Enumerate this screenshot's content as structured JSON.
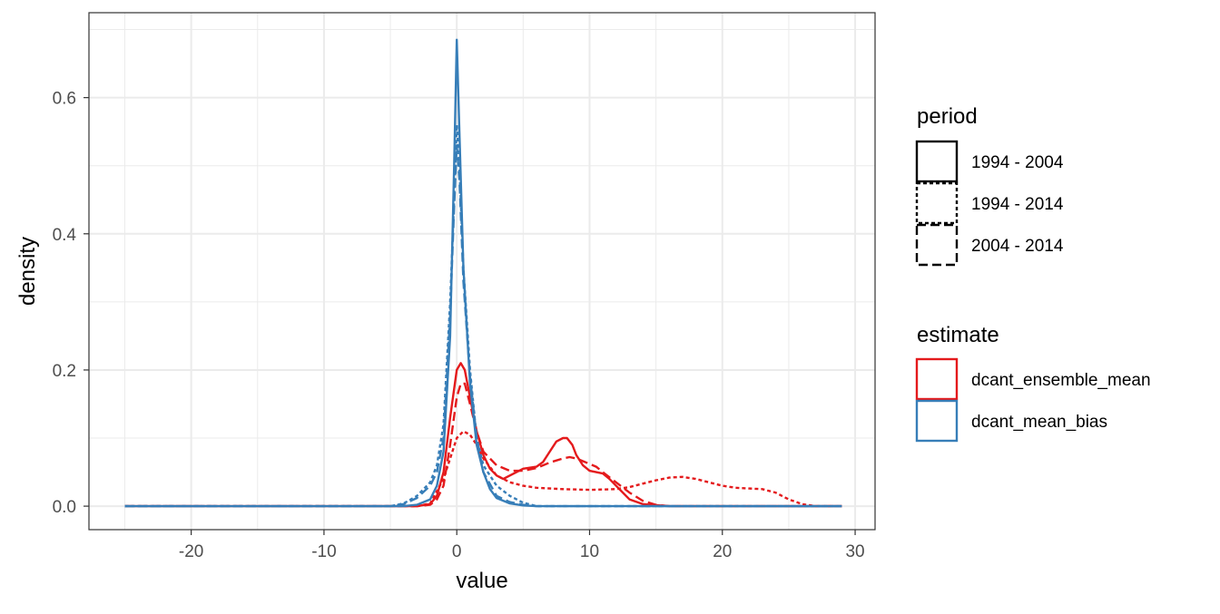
{
  "chart_data": {
    "type": "line",
    "xlabel": "value",
    "ylabel": "density",
    "xlim": [
      -27.7,
      31.5
    ],
    "ylim": [
      -0.0345,
      0.7247
    ],
    "xticks": [
      -20,
      -10,
      0,
      10,
      20,
      30
    ],
    "yticks": [
      0.0,
      0.2,
      0.4,
      0.6
    ],
    "xtick_labels": [
      "-20",
      "-10",
      "0",
      "10",
      "20",
      "30"
    ],
    "ytick_labels": [
      "0.0",
      "0.2",
      "0.4",
      "0.6"
    ],
    "grid": true,
    "legend_position": "right",
    "colors": {
      "dcant_ensemble_mean": "#e41a1c",
      "dcant_mean_bias": "#377eb8"
    },
    "legends": [
      {
        "title": "period",
        "kind": "linetype",
        "entries": [
          {
            "label": "1994 - 2004",
            "linetype": "solid"
          },
          {
            "label": "1994 - 2014",
            "linetype": "dotted"
          },
          {
            "label": "2004 - 2014",
            "linetype": "dashed"
          }
        ]
      },
      {
        "title": "estimate",
        "kind": "color",
        "entries": [
          {
            "label": "dcant_ensemble_mean",
            "color": "#e41a1c"
          },
          {
            "label": "dcant_mean_bias",
            "color": "#377eb8"
          }
        ]
      }
    ],
    "series": [
      {
        "estimate": "dcant_ensemble_mean",
        "period": "1994 - 2004",
        "x": [
          -25,
          -3,
          -2,
          -1.5,
          -1,
          -0.5,
          0,
          0.3,
          0.6,
          1,
          1.5,
          2,
          2.5,
          3,
          3.5,
          4,
          5,
          6,
          6.5,
          7,
          7.5,
          8,
          8.3,
          8.7,
          9,
          9.5,
          10,
          10.5,
          11,
          11.5,
          12,
          12.5,
          13,
          14,
          16,
          20,
          25,
          29
        ],
        "y": [
          0,
          0,
          0.003,
          0.015,
          0.05,
          0.13,
          0.2,
          0.21,
          0.2,
          0.16,
          0.11,
          0.075,
          0.055,
          0.045,
          0.04,
          0.045,
          0.055,
          0.058,
          0.065,
          0.08,
          0.095,
          0.1,
          0.1,
          0.09,
          0.075,
          0.06,
          0.052,
          0.05,
          0.048,
          0.04,
          0.03,
          0.02,
          0.01,
          0.003,
          0,
          0,
          0,
          0
        ]
      },
      {
        "estimate": "dcant_ensemble_mean",
        "period": "1994 - 2014",
        "x": [
          -25,
          -3,
          -2,
          -1,
          -0.5,
          0,
          0.5,
          1,
          1.5,
          2,
          3,
          4,
          5,
          6,
          8,
          10,
          12,
          13,
          14,
          15,
          16,
          17,
          18,
          19,
          20,
          21,
          22,
          23,
          24,
          25,
          26,
          27,
          29
        ],
        "y": [
          0,
          0,
          0.004,
          0.04,
          0.07,
          0.1,
          0.11,
          0.105,
          0.09,
          0.07,
          0.045,
          0.035,
          0.03,
          0.027,
          0.025,
          0.024,
          0.025,
          0.028,
          0.033,
          0.038,
          0.042,
          0.043,
          0.04,
          0.035,
          0.03,
          0.027,
          0.026,
          0.025,
          0.02,
          0.01,
          0.003,
          0,
          0
        ]
      },
      {
        "estimate": "dcant_ensemble_mean",
        "period": "2004 - 2014",
        "x": [
          -25,
          -3,
          -2,
          -1.5,
          -1,
          -0.5,
          0,
          0.3,
          0.6,
          1,
          1.5,
          2,
          3,
          4,
          5,
          6,
          7,
          8,
          8.5,
          9,
          9.5,
          10,
          10.5,
          11,
          12,
          13,
          14,
          15,
          16,
          20,
          25,
          29
        ],
        "y": [
          0,
          0,
          0.002,
          0.01,
          0.03,
          0.09,
          0.16,
          0.18,
          0.18,
          0.15,
          0.11,
          0.08,
          0.06,
          0.052,
          0.052,
          0.056,
          0.064,
          0.07,
          0.072,
          0.07,
          0.066,
          0.062,
          0.058,
          0.05,
          0.035,
          0.02,
          0.008,
          0.002,
          0,
          0,
          0,
          0
        ]
      },
      {
        "estimate": "dcant_mean_bias",
        "period": "1994 - 2004",
        "x": [
          -25,
          -4,
          -3,
          -2,
          -1.5,
          -1,
          -0.5,
          -0.2,
          0,
          0.2,
          0.5,
          1,
          1.5,
          2,
          2.5,
          3,
          4,
          5,
          6,
          8,
          29
        ],
        "y": [
          0,
          0,
          0.002,
          0.01,
          0.03,
          0.08,
          0.25,
          0.5,
          0.685,
          0.55,
          0.35,
          0.18,
          0.09,
          0.05,
          0.025,
          0.012,
          0.004,
          0.001,
          0,
          0,
          0
        ]
      },
      {
        "estimate": "dcant_mean_bias",
        "period": "1994 - 2014",
        "x": [
          -25,
          -5,
          -4,
          -3,
          -2,
          -1.5,
          -1,
          -0.5,
          -0.2,
          0,
          0.2,
          0.5,
          1,
          1.5,
          2,
          3,
          4,
          5,
          6,
          29
        ],
        "y": [
          0,
          0,
          0.004,
          0.015,
          0.035,
          0.06,
          0.12,
          0.3,
          0.45,
          0.56,
          0.5,
          0.35,
          0.2,
          0.1,
          0.06,
          0.03,
          0.015,
          0.005,
          0,
          0
        ]
      },
      {
        "estimate": "dcant_mean_bias",
        "period": "2004 - 2014",
        "x": [
          -25,
          -5,
          -4,
          -3,
          -2,
          -1.5,
          -1,
          -0.5,
          -0.2,
          0,
          0.2,
          0.5,
          1,
          1.5,
          2,
          3,
          4,
          5,
          6,
          29
        ],
        "y": [
          0,
          0,
          0.003,
          0.012,
          0.03,
          0.05,
          0.1,
          0.28,
          0.44,
          0.53,
          0.48,
          0.33,
          0.19,
          0.1,
          0.05,
          0.015,
          0.006,
          0.002,
          0,
          0
        ]
      }
    ]
  }
}
